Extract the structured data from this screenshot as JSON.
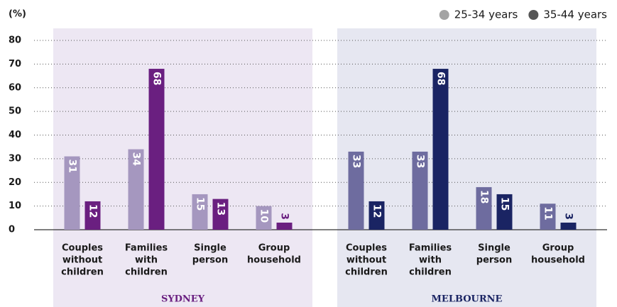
{
  "chart_data": {
    "type": "bar",
    "y_label": "(%)",
    "ylim": [
      0,
      80
    ],
    "yticks": [
      0,
      10,
      20,
      30,
      40,
      50,
      60,
      70,
      80
    ],
    "grid": true,
    "legend_position": "top-right",
    "legend": [
      {
        "name": "25-34 years",
        "color": "#a3a3a3"
      },
      {
        "name": "35-44 years",
        "color": "#555555"
      }
    ],
    "categories": [
      [
        "Couples",
        "without",
        "children"
      ],
      [
        "Families",
        "with",
        "children"
      ],
      [
        "Single",
        "person"
      ],
      [
        "Group",
        "household"
      ]
    ],
    "panels": [
      {
        "title": "SYDNEY",
        "background": "#ede7f3",
        "title_color": "#6a1f80",
        "series": [
          {
            "color": "#a597bf",
            "values": [
              31,
              34,
              15,
              10
            ]
          },
          {
            "color": "#6a1f80",
            "values": [
              12,
              68,
              13,
              3
            ]
          }
        ]
      },
      {
        "title": "MELBOURNE",
        "background": "#e6e7f1",
        "title_color": "#1a2463",
        "series": [
          {
            "color": "#6e6c9f",
            "values": [
              33,
              33,
              18,
              11
            ]
          },
          {
            "color": "#1a2463",
            "values": [
              12,
              68,
              15,
              3
            ]
          }
        ]
      }
    ]
  }
}
